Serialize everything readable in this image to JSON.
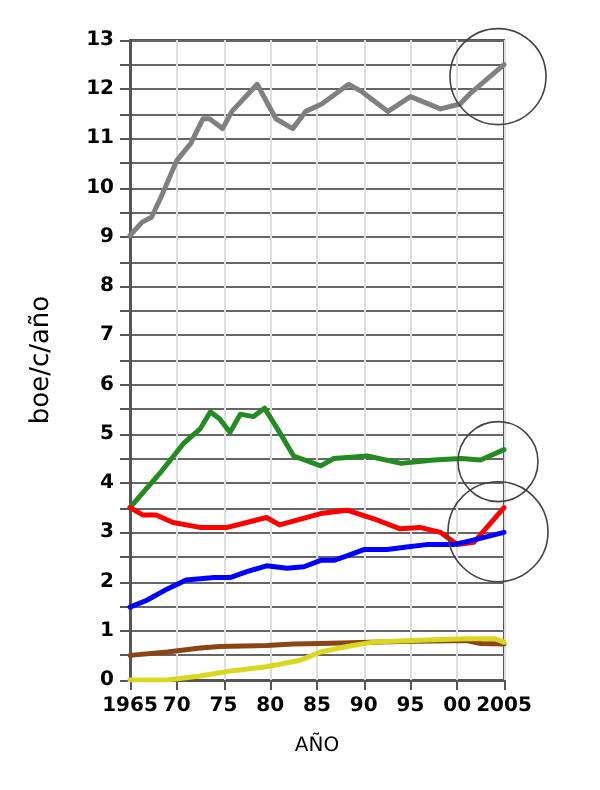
{
  "chart_data": {
    "type": "line",
    "xlabel": "AÑO",
    "ylabel": "boe/c/año",
    "grid": true,
    "marker": "none",
    "line_style": "solid",
    "xlim": [
      1965,
      2005
    ],
    "xticks": [
      {
        "value": 1965,
        "label": "1965"
      },
      {
        "value": 1970,
        "label": "70"
      },
      {
        "value": 1975,
        "label": "75"
      },
      {
        "value": 1980,
        "label": "80"
      },
      {
        "value": 1985,
        "label": "85"
      },
      {
        "value": 1990,
        "label": "90"
      },
      {
        "value": 1995,
        "label": "95"
      },
      {
        "value": 2000,
        "label": "00"
      },
      {
        "value": 2005,
        "label": "2005"
      }
    ],
    "ylim": [
      0,
      13
    ],
    "yticks": [
      0,
      {
        "value": 0.5,
        "label": null
      },
      1,
      {
        "value": 1.5,
        "label": null
      },
      2,
      {
        "value": 2.5,
        "label": null
      },
      3,
      {
        "value": 3.5,
        "label": null
      },
      4,
      {
        "value": 4.5,
        "label": null
      },
      5,
      {
        "value": 5.5,
        "label": null
      },
      6,
      {
        "value": 6.5,
        "label": null
      },
      7,
      {
        "value": 7.5,
        "label": null
      },
      8,
      {
        "value": 8.5,
        "label": null
      },
      9,
      {
        "value": 9.5,
        "label": null
      },
      10,
      {
        "value": 10.5,
        "label": null
      },
      11,
      {
        "value": 11.5,
        "label": null
      },
      12,
      {
        "value": 12.5,
        "label": null
      },
      13
    ],
    "series": [
      {
        "color": "#808080",
        "x": [
          1965,
          1966.3,
          1967.3,
          1968.3,
          1970,
          1971.5,
          1972.8,
          1973.5,
          1974.9,
          1975.9,
          1978.6,
          1980.6,
          1982.4,
          1983.8,
          1985.5,
          1988.4,
          1989.8,
          1992.6,
          1995,
          1998.2,
          2000.3,
          2001.3,
          2005
        ],
        "values": [
          9.03,
          9.3,
          9.4,
          9.8,
          10.55,
          10.9,
          11.4,
          11.4,
          11.2,
          11.55,
          12.1,
          11.4,
          11.2,
          11.55,
          11.7,
          12.1,
          11.95,
          11.55,
          11.85,
          11.6,
          11.7,
          11.9,
          12.5
        ]
      },
      {
        "color": "#228b22",
        "x": [
          1965,
          1968.2,
          1970.7,
          1972.5,
          1973.6,
          1974.6,
          1975.7,
          1976.8,
          1978.2,
          1979.4,
          1981,
          1982.5,
          1985.4,
          1986.8,
          1990.4,
          1994,
          1997.5,
          2000.4,
          2002.5,
          2005
        ],
        "values": [
          3.5,
          4.2,
          4.8,
          5.1,
          5.45,
          5.3,
          5.03,
          5.4,
          5.35,
          5.52,
          5.03,
          4.55,
          4.35,
          4.5,
          4.55,
          4.4,
          4.47,
          4.5,
          4.47,
          4.68
        ]
      },
      {
        "color": "#ff0000",
        "x": [
          1965,
          1966.4,
          1967.8,
          1969.6,
          1972.5,
          1975.4,
          1977.5,
          1979.6,
          1981,
          1985.4,
          1988.2,
          1991,
          1993.9,
          1996,
          1998.2,
          2000,
          2001.8,
          2005
        ],
        "values": [
          3.5,
          3.35,
          3.35,
          3.2,
          3.1,
          3.1,
          3.2,
          3.3,
          3.15,
          3.38,
          3.45,
          3.28,
          3.07,
          3.1,
          3.0,
          2.75,
          2.8,
          3.5
        ]
      },
      {
        "color": "#0000ff",
        "x": [
          1965,
          1966.8,
          1969,
          1971,
          1974,
          1975.7,
          1977.5,
          1979.6,
          1981.8,
          1983.6,
          1985.4,
          1986.8,
          1988.2,
          1990,
          1992.5,
          1994.6,
          1996.7,
          1999.6,
          2001.7,
          2005
        ],
        "values": [
          1.48,
          1.62,
          1.85,
          2.03,
          2.08,
          2.08,
          2.2,
          2.32,
          2.27,
          2.3,
          2.43,
          2.43,
          2.52,
          2.65,
          2.65,
          2.7,
          2.75,
          2.75,
          2.84,
          3.0
        ]
      },
      {
        "color": "#8b4513",
        "x": [
          1965,
          1969,
          1972.5,
          1974.6,
          1979.6,
          1982.5,
          1985.4,
          1994,
          2001,
          2002.5,
          2005
        ],
        "values": [
          0.5,
          0.57,
          0.65,
          0.68,
          0.7,
          0.73,
          0.74,
          0.78,
          0.8,
          0.74,
          0.73
        ]
      },
      {
        "color": "#d8d820",
        "x": [
          1965,
          1969,
          1972.5,
          1976,
          1979.6,
          1983.2,
          1985.4,
          1988.2,
          1991,
          1996.7,
          2001,
          2004,
          2005
        ],
        "values": [
          0,
          0,
          0.08,
          0.19,
          0.27,
          0.4,
          0.57,
          0.68,
          0.77,
          0.81,
          0.84,
          0.84,
          0.77
        ]
      }
    ]
  }
}
